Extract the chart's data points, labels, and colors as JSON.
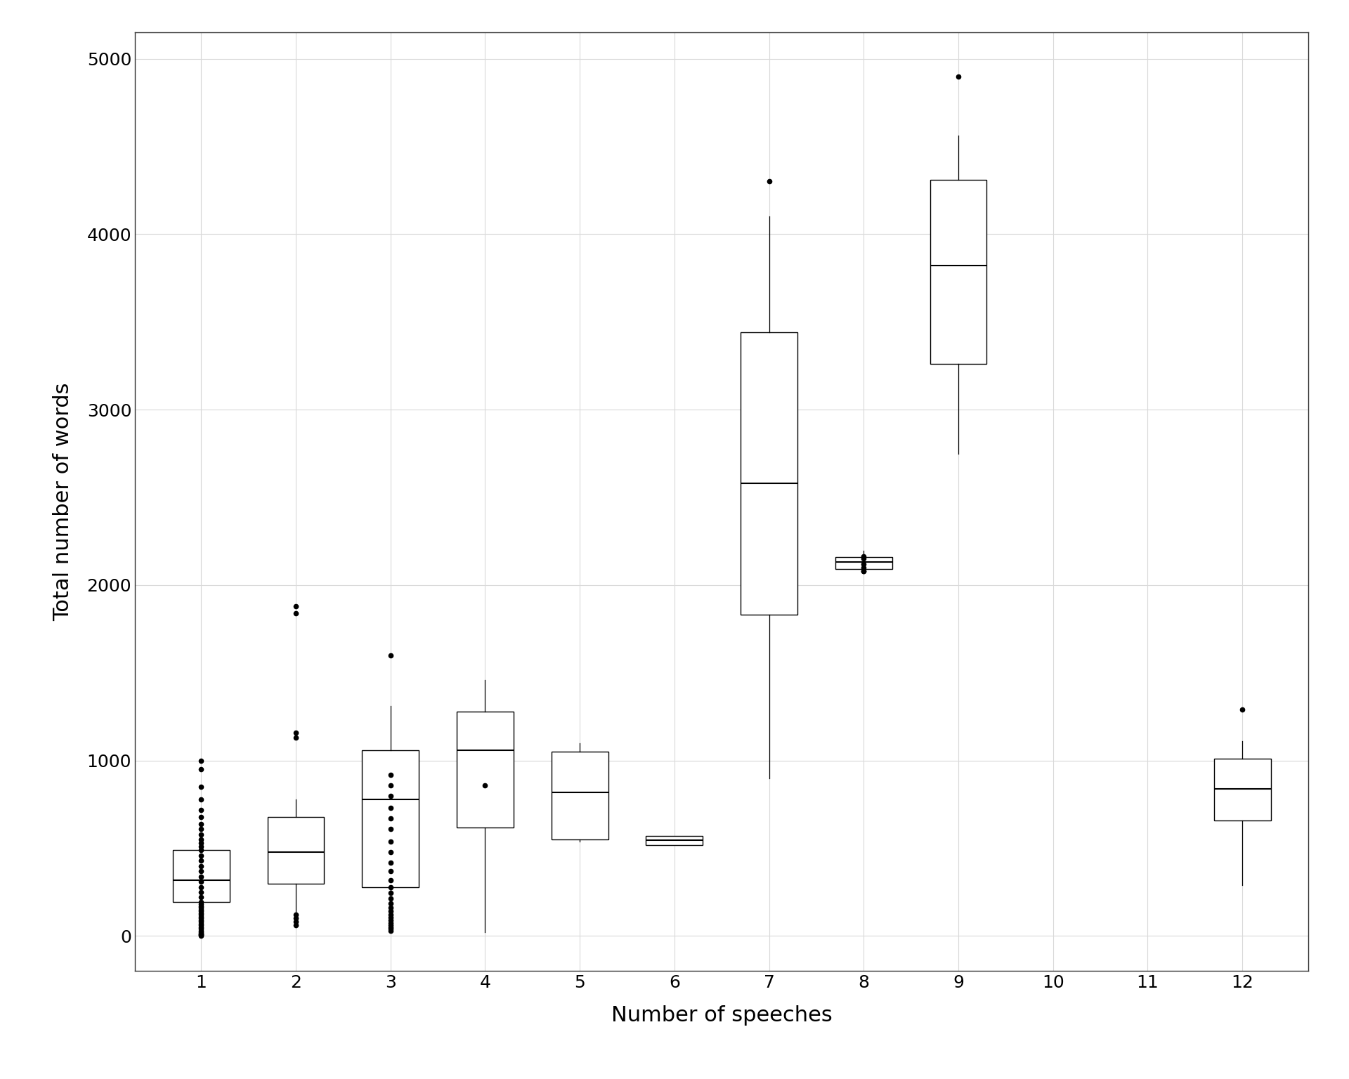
{
  "title": "",
  "xlabel": "Number of speeches",
  "ylabel": "Total number of words",
  "xlim": [
    0.3,
    12.7
  ],
  "ylim": [
    -200,
    5150
  ],
  "xticks": [
    1,
    2,
    3,
    4,
    5,
    6,
    7,
    8,
    9,
    10,
    11,
    12
  ],
  "yticks": [
    0,
    1000,
    2000,
    3000,
    4000,
    5000
  ],
  "background_color": "#ffffff",
  "grid_color": "#d9d9d9",
  "box_width": 0.6,
  "boxes": {
    "1": {
      "q1": 195,
      "median": 320,
      "q3": 490,
      "whisker_low": 30,
      "whisker_high": 580,
      "outliers": [
        0,
        5,
        10,
        15,
        20,
        30,
        40,
        50,
        60,
        70,
        80,
        90,
        100,
        110,
        120,
        130,
        140,
        150,
        160,
        170,
        180,
        195,
        220,
        250,
        280,
        310,
        340,
        370,
        400,
        430,
        460,
        490,
        510,
        530,
        550,
        580,
        610,
        640,
        680,
        720,
        780,
        850,
        950,
        1000
      ]
    },
    "2": {
      "q1": 300,
      "median": 480,
      "q3": 680,
      "whisker_low": 50,
      "whisker_high": 780,
      "outliers": [
        60,
        80,
        100,
        120,
        1130,
        1160,
        1840,
        1880
      ]
    },
    "3": {
      "q1": 280,
      "median": 780,
      "q3": 1060,
      "whisker_low": 20,
      "whisker_high": 1310,
      "outliers": [
        30,
        40,
        50,
        60,
        75,
        90,
        105,
        120,
        140,
        160,
        185,
        215,
        245,
        280,
        320,
        370,
        420,
        480,
        540,
        610,
        670,
        730,
        800,
        860,
        920,
        1600
      ]
    },
    "4": {
      "q1": 620,
      "median": 1060,
      "q3": 1280,
      "whisker_low": 20,
      "whisker_high": 1460,
      "outliers": [
        860
      ]
    },
    "5": {
      "q1": 550,
      "median": 820,
      "q3": 1050,
      "whisker_low": 540,
      "whisker_high": 1100,
      "outliers": []
    },
    "6": {
      "q1": 520,
      "median": 545,
      "q3": 570,
      "whisker_low": 520,
      "whisker_high": 570,
      "outliers": []
    },
    "7": {
      "q1": 1830,
      "median": 2580,
      "q3": 3440,
      "whisker_low": 900,
      "whisker_high": 4100,
      "outliers": [
        4300
      ]
    },
    "8": {
      "q1": 2090,
      "median": 2130,
      "q3": 2160,
      "whisker_low": 2080,
      "whisker_high": 2195,
      "outliers": [
        2080,
        2100,
        2120,
        2150,
        2165,
        2080
      ]
    },
    "9": {
      "q1": 3260,
      "median": 3820,
      "q3": 4310,
      "whisker_low": 2750,
      "whisker_high": 4560,
      "outliers": [
        4900
      ]
    },
    "12": {
      "q1": 660,
      "median": 840,
      "q3": 1010,
      "whisker_low": 290,
      "whisker_high": 1110,
      "outliers": [
        1290
      ]
    }
  }
}
